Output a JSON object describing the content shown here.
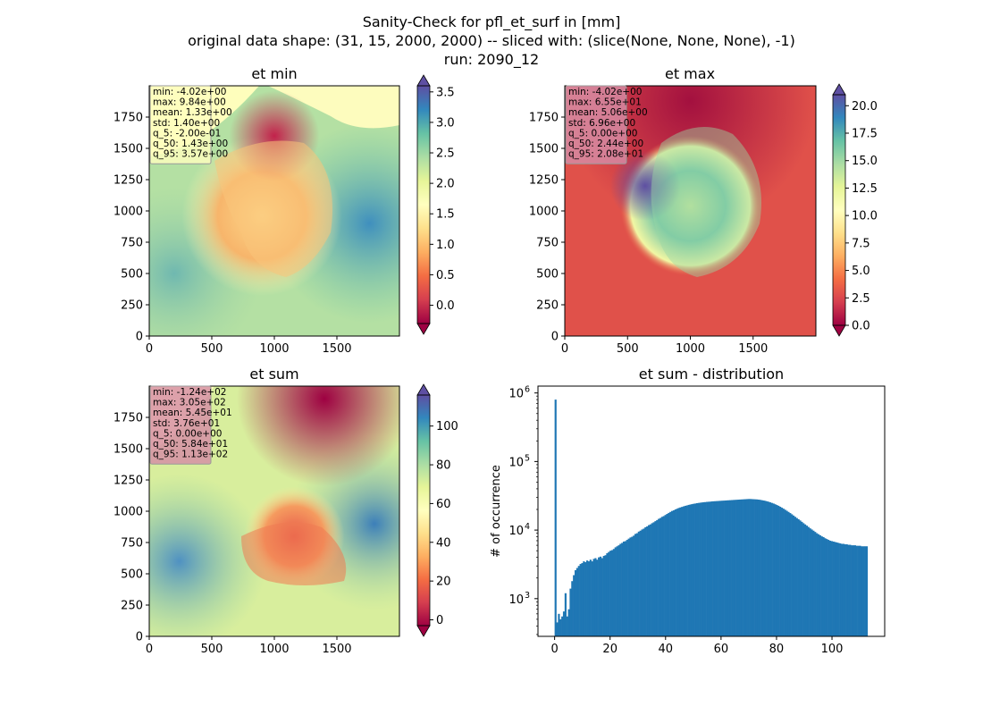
{
  "title_lines": [
    "Sanity-Check for pfl_et_surf in [mm]",
    "original data shape: (31, 15, 2000, 2000) -- sliced with: (slice(None, None, None), -1)",
    "run: 2090_12"
  ],
  "colors": {
    "bar": "#1f77b4",
    "axis": "#000000",
    "stats_box_edge": "#999999"
  },
  "chart_data": [
    {
      "type": "heatmap",
      "title": "et min",
      "xlim": [
        0,
        2000
      ],
      "ylim": [
        0,
        2000
      ],
      "x_ticks": [
        0,
        500,
        1000,
        1500
      ],
      "y_ticks": [
        0,
        250,
        500,
        750,
        1000,
        1250,
        1500,
        1750
      ],
      "colormap": "Spectral",
      "colorbar": {
        "min": -0.3,
        "max": 3.6,
        "ticks": [
          0.0,
          0.5,
          1.0,
          1.5,
          2.0,
          2.5,
          3.0,
          3.5
        ],
        "extend": "both"
      },
      "stats": [
        "min: -4.02e+00",
        "max: 9.84e+00",
        "mean: 1.33e+00",
        "std: 1.40e+00",
        "q_5: -2.00e-01",
        "q_50: 1.43e+00",
        "q_95: 3.57e+00"
      ],
      "stats_box_color": "#fefebe"
    },
    {
      "type": "heatmap",
      "title": "et max",
      "xlim": [
        0,
        2000
      ],
      "ylim": [
        0,
        2000
      ],
      "x_ticks": [
        0,
        500,
        1000,
        1500
      ],
      "y_ticks": [
        0,
        250,
        500,
        750,
        1000,
        1250,
        1500,
        1750
      ],
      "colormap": "Spectral",
      "colorbar": {
        "min": 0.0,
        "max": 21.0,
        "ticks": [
          0.0,
          2.5,
          5.0,
          7.5,
          10.0,
          12.5,
          15.0,
          17.5,
          20.0
        ],
        "extend": "both"
      },
      "stats": [
        "min: -4.02e+00",
        "max: 6.55e+01",
        "mean: 5.06e+00",
        "std: 6.96e+00",
        "q_5: 0.00e+00",
        "q_50: 2.44e+00",
        "q_95: 2.08e+01"
      ],
      "stats_box_color": "#d58ca6"
    },
    {
      "type": "heatmap",
      "title": "et sum",
      "xlim": [
        0,
        2000
      ],
      "ylim": [
        0,
        2000
      ],
      "x_ticks": [
        0,
        500,
        1000,
        1500
      ],
      "y_ticks": [
        0,
        250,
        500,
        750,
        1000,
        1250,
        1500,
        1750
      ],
      "colormap": "Spectral",
      "colorbar": {
        "min": -3,
        "max": 116,
        "ticks": [
          0,
          20,
          40,
          60,
          80,
          100
        ],
        "extend": "both"
      },
      "stats": [
        "min: -1.24e+02",
        "max: 3.05e+02",
        "mean: 5.45e+01",
        "std: 3.76e+01",
        "q_5: 0.00e+00",
        "q_50: 5.84e+01",
        "q_95: 1.13e+02"
      ],
      "stats_box_color": "#d58ca6"
    },
    {
      "type": "bar",
      "title": "et sum - distribution",
      "xlabel": "",
      "ylabel": "# of occurrence",
      "xlim": [
        -6,
        119
      ],
      "ylim_log10": [
        2.45,
        6.1
      ],
      "yscale": "log",
      "x_ticks": [
        0,
        20,
        40,
        60,
        80,
        100
      ],
      "y_ticks": [
        {
          "exp": 3,
          "label": "10",
          "sup": "3"
        },
        {
          "exp": 4,
          "label": "10",
          "sup": "4"
        },
        {
          "exp": 5,
          "label": "10",
          "sup": "5"
        },
        {
          "exp": 6,
          "label": "10",
          "sup": "6"
        }
      ],
      "bin_width": 0.575,
      "bins": [
        [
          0.0,
          800000
        ],
        [
          0.6,
          450
        ],
        [
          1.2,
          600
        ],
        [
          1.8,
          500
        ],
        [
          2.4,
          550
        ],
        [
          3.0,
          650
        ],
        [
          3.6,
          1200
        ],
        [
          4.2,
          550
        ],
        [
          4.8,
          700
        ],
        [
          5.4,
          1400
        ],
        [
          6.0,
          1800
        ],
        [
          6.6,
          2200
        ],
        [
          7.2,
          2600
        ],
        [
          7.8,
          2800
        ],
        [
          8.4,
          3000
        ],
        [
          9.0,
          3200
        ],
        [
          9.6,
          3300
        ],
        [
          10.2,
          3500
        ],
        [
          10.8,
          3400
        ],
        [
          11.4,
          3600
        ],
        [
          12.0,
          3500
        ],
        [
          12.6,
          3700
        ],
        [
          13.2,
          3500
        ],
        [
          13.8,
          3800
        ],
        [
          14.4,
          3900
        ],
        [
          15.0,
          3700
        ],
        [
          15.6,
          4000
        ],
        [
          16.2,
          4100
        ],
        [
          16.8,
          3900
        ],
        [
          17.4,
          4200
        ],
        [
          18.0,
          4300
        ],
        [
          18.6,
          4600
        ],
        [
          19.2,
          4800
        ],
        [
          19.8,
          5000
        ],
        [
          20.4,
          5100
        ],
        [
          21.0,
          5300
        ],
        [
          21.6,
          5600
        ],
        [
          22.2,
          5800
        ],
        [
          22.8,
          6000
        ],
        [
          23.4,
          6300
        ],
        [
          24.0,
          6500
        ],
        [
          24.6,
          6800
        ],
        [
          25.2,
          6900
        ],
        [
          25.8,
          7200
        ],
        [
          26.4,
          7500
        ],
        [
          27.0,
          7800
        ],
        [
          27.6,
          8000
        ],
        [
          28.2,
          8300
        ],
        [
          28.8,
          8800
        ],
        [
          29.4,
          9000
        ],
        [
          30.0,
          9500
        ],
        [
          30.6,
          9800
        ],
        [
          31.2,
          10200
        ],
        [
          31.8,
          10500
        ],
        [
          32.4,
          11000
        ],
        [
          33.0,
          11300
        ],
        [
          33.6,
          11800
        ],
        [
          34.2,
          12100
        ],
        [
          34.8,
          12600
        ],
        [
          35.4,
          13000
        ],
        [
          36.0,
          13500
        ],
        [
          36.6,
          14000
        ],
        [
          37.2,
          14600
        ],
        [
          37.8,
          15000
        ],
        [
          38.4,
          15600
        ],
        [
          39.0,
          16000
        ],
        [
          39.6,
          16600
        ],
        [
          40.2,
          17200
        ],
        [
          40.8,
          17800
        ],
        [
          41.4,
          18400
        ],
        [
          42.0,
          19000
        ],
        [
          42.6,
          19400
        ],
        [
          43.2,
          20000
        ],
        [
          43.8,
          20500
        ],
        [
          44.4,
          21000
        ],
        [
          45.0,
          21400
        ],
        [
          45.6,
          21800
        ],
        [
          46.2,
          22200
        ],
        [
          46.8,
          22600
        ],
        [
          47.4,
          22900
        ],
        [
          48.0,
          23300
        ],
        [
          48.6,
          23600
        ],
        [
          49.2,
          23900
        ],
        [
          49.8,
          24200
        ],
        [
          50.4,
          24400
        ],
        [
          51.0,
          24700
        ],
        [
          51.6,
          24900
        ],
        [
          52.2,
          25100
        ],
        [
          52.8,
          25300
        ],
        [
          53.4,
          25500
        ],
        [
          54.0,
          25600
        ],
        [
          54.6,
          25800
        ],
        [
          55.2,
          25900
        ],
        [
          55.8,
          26000
        ],
        [
          56.4,
          26200
        ],
        [
          57.0,
          26300
        ],
        [
          57.6,
          26400
        ],
        [
          58.2,
          26500
        ],
        [
          58.8,
          26600
        ],
        [
          59.4,
          26700
        ],
        [
          60.0,
          26800
        ],
        [
          60.6,
          26900
        ],
        [
          61.2,
          27000
        ],
        [
          61.8,
          27100
        ],
        [
          62.4,
          27200
        ],
        [
          63.0,
          27300
        ],
        [
          63.6,
          27400
        ],
        [
          64.2,
          27500
        ],
        [
          64.8,
          27600
        ],
        [
          65.4,
          27700
        ],
        [
          66.0,
          27800
        ],
        [
          66.6,
          27900
        ],
        [
          67.2,
          28000
        ],
        [
          67.8,
          28100
        ],
        [
          68.4,
          28200
        ],
        [
          69.0,
          28300
        ],
        [
          69.6,
          28400
        ],
        [
          70.2,
          28400
        ],
        [
          70.8,
          28300
        ],
        [
          71.4,
          28200
        ],
        [
          72.0,
          28100
        ],
        [
          72.6,
          28000
        ],
        [
          73.2,
          27800
        ],
        [
          73.8,
          27600
        ],
        [
          74.4,
          27300
        ],
        [
          75.0,
          27000
        ],
        [
          75.6,
          26700
        ],
        [
          76.2,
          26300
        ],
        [
          76.8,
          25900
        ],
        [
          77.4,
          25400
        ],
        [
          78.0,
          24900
        ],
        [
          78.6,
          24400
        ],
        [
          79.2,
          23800
        ],
        [
          79.8,
          23200
        ],
        [
          80.4,
          22600
        ],
        [
          81.0,
          21900
        ],
        [
          81.6,
          21200
        ],
        [
          82.2,
          20500
        ],
        [
          82.8,
          19800
        ],
        [
          83.4,
          19100
        ],
        [
          84.0,
          18400
        ],
        [
          84.6,
          17700
        ],
        [
          85.2,
          17000
        ],
        [
          85.8,
          16300
        ],
        [
          86.4,
          15600
        ],
        [
          87.0,
          15000
        ],
        [
          87.6,
          14400
        ],
        [
          88.2,
          13800
        ],
        [
          88.8,
          13200
        ],
        [
          89.4,
          12600
        ],
        [
          90.0,
          12100
        ],
        [
          90.6,
          11600
        ],
        [
          91.2,
          11100
        ],
        [
          91.8,
          10600
        ],
        [
          92.4,
          10200
        ],
        [
          93.0,
          9800
        ],
        [
          93.6,
          9400
        ],
        [
          94.2,
          9000
        ],
        [
          94.8,
          8700
        ],
        [
          95.4,
          8400
        ],
        [
          96.0,
          8100
        ],
        [
          96.6,
          7900
        ],
        [
          97.2,
          7600
        ],
        [
          97.8,
          7400
        ],
        [
          98.4,
          7200
        ],
        [
          99.0,
          7000
        ],
        [
          99.6,
          6900
        ],
        [
          100.2,
          6800
        ],
        [
          100.8,
          6700
        ],
        [
          101.4,
          6600
        ],
        [
          102.0,
          6500
        ],
        [
          102.6,
          6400
        ],
        [
          103.2,
          6300
        ],
        [
          103.8,
          6300
        ],
        [
          104.4,
          6200
        ],
        [
          105.0,
          6200
        ],
        [
          105.6,
          6100
        ],
        [
          106.2,
          6100
        ],
        [
          106.8,
          6000
        ],
        [
          107.4,
          6000
        ],
        [
          108.0,
          6000
        ],
        [
          108.6,
          5900
        ],
        [
          109.2,
          5900
        ],
        [
          109.8,
          5900
        ],
        [
          110.4,
          5800
        ],
        [
          111.0,
          5800
        ],
        [
          111.6,
          5800
        ],
        [
          112.2,
          5800
        ]
      ]
    }
  ]
}
